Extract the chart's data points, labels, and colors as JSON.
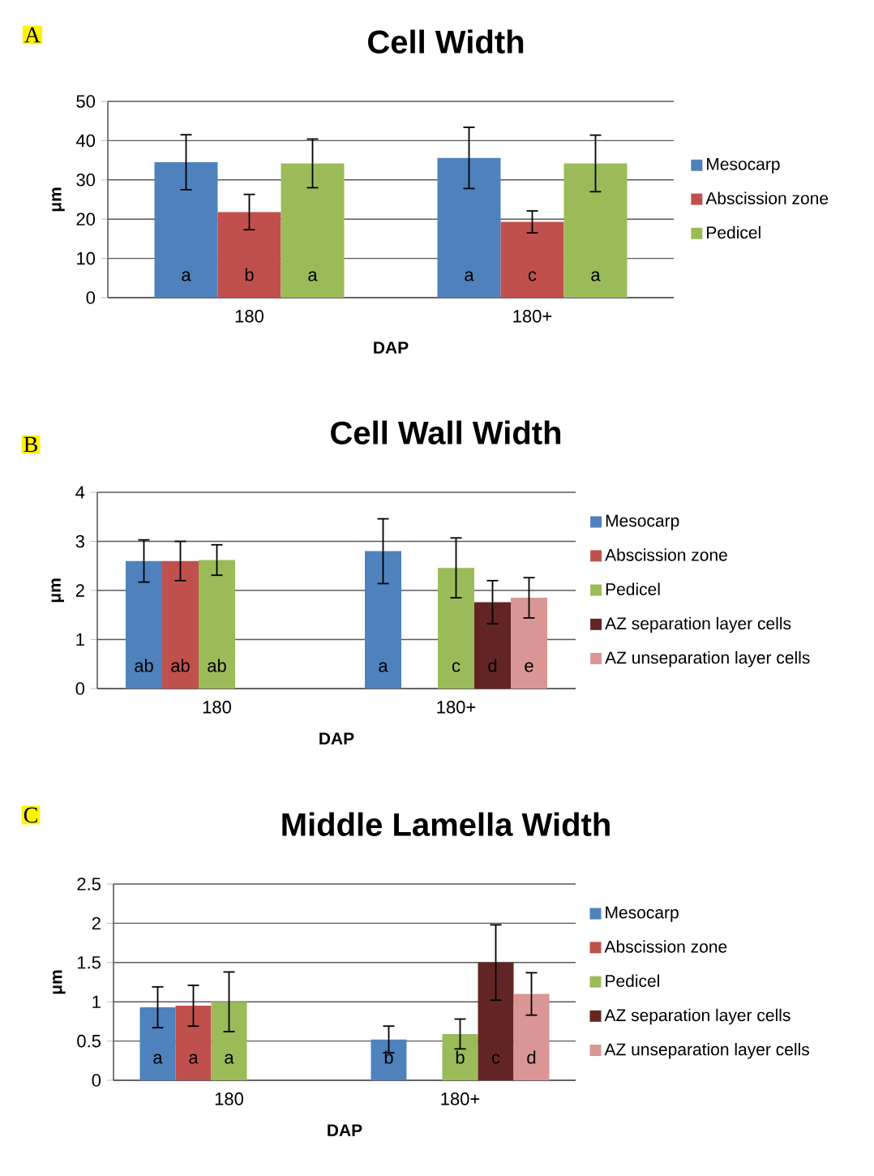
{
  "chart_data": [
    {
      "type": "bar",
      "title": "Cell Width",
      "xlabel": "DAP",
      "ylabel": "μm",
      "categories": [
        "180",
        "180+"
      ],
      "series": [
        {
          "name": "Mesocarp",
          "color": "#4f81bd",
          "values": [
            34.5,
            35.6
          ],
          "errors": [
            7.0,
            7.8
          ]
        },
        {
          "name": "Abscission zone",
          "color": "#c0504d",
          "values": [
            21.8,
            19.3
          ],
          "errors": [
            4.5,
            2.8
          ]
        },
        {
          "name": "Pedicel",
          "color": "#9bbb59",
          "values": [
            34.2,
            34.2
          ],
          "errors": [
            6.2,
            7.2
          ]
        }
      ],
      "ylim": [
        0,
        50
      ],
      "yticks": [
        0,
        10,
        20,
        30,
        40,
        50
      ],
      "grid": "y",
      "legend": "right",
      "annotations": [
        "A",
        "a",
        "b",
        "a",
        "a",
        "c",
        "a"
      ]
    },
    {
      "type": "bar",
      "title": "Cell Wall Width",
      "xlabel": "DAP",
      "ylabel": "μm",
      "categories": [
        "180",
        "180+"
      ],
      "series": [
        {
          "name": "Mesocarp",
          "color": "#4f81bd",
          "values": [
            2.6,
            2.8
          ],
          "errors": [
            0.43,
            0.66
          ]
        },
        {
          "name": "Abscission zone",
          "color": "#c0504d",
          "values": [
            2.6,
            null
          ],
          "errors": [
            0.4,
            null
          ]
        },
        {
          "name": "Pedicel",
          "color": "#9bbb59",
          "values": [
            2.62,
            2.46
          ],
          "errors": [
            0.31,
            0.61
          ]
        },
        {
          "name": "AZ separation layer cells",
          "color": "#632523",
          "values": [
            null,
            1.76
          ],
          "errors": [
            null,
            0.44
          ]
        },
        {
          "name": "AZ unseparation layer cells",
          "color": "#d99694",
          "values": [
            null,
            1.85
          ],
          "errors": [
            null,
            0.41
          ]
        }
      ],
      "ylim": [
        0,
        4
      ],
      "yticks": [
        0,
        1,
        2,
        3,
        4
      ],
      "grid": "y",
      "legend": "right",
      "annotations": [
        "B",
        "ab",
        "ab",
        "ab",
        "a",
        "c",
        "d",
        "e"
      ]
    },
    {
      "type": "bar",
      "title": "Middle Lamella Width",
      "xlabel": "DAP",
      "ylabel": "μm",
      "categories": [
        "180",
        "180+"
      ],
      "series": [
        {
          "name": "Mesocarp",
          "color": "#4f81bd",
          "values": [
            0.93,
            0.52
          ],
          "errors": [
            0.26,
            0.17
          ]
        },
        {
          "name": "Abscission zone",
          "color": "#c0504d",
          "values": [
            0.95,
            null
          ],
          "errors": [
            0.26,
            null
          ]
        },
        {
          "name": "Pedicel",
          "color": "#9bbb59",
          "values": [
            1.0,
            0.59
          ],
          "errors": [
            0.38,
            0.19
          ]
        },
        {
          "name": "AZ separation layer cells",
          "color": "#632523",
          "values": [
            null,
            1.5
          ],
          "errors": [
            null,
            0.48
          ]
        },
        {
          "name": "AZ unseparation layer cells",
          "color": "#d99694",
          "values": [
            null,
            1.1
          ],
          "errors": [
            null,
            0.27
          ]
        }
      ],
      "ylim": [
        0,
        2.5
      ],
      "yticks": [
        0,
        0.5,
        1,
        1.5,
        2,
        2.5
      ],
      "grid": "y",
      "legend": "right",
      "annotations": [
        "C",
        "a",
        "a",
        "a",
        "b",
        "b",
        "c",
        "d"
      ]
    }
  ]
}
